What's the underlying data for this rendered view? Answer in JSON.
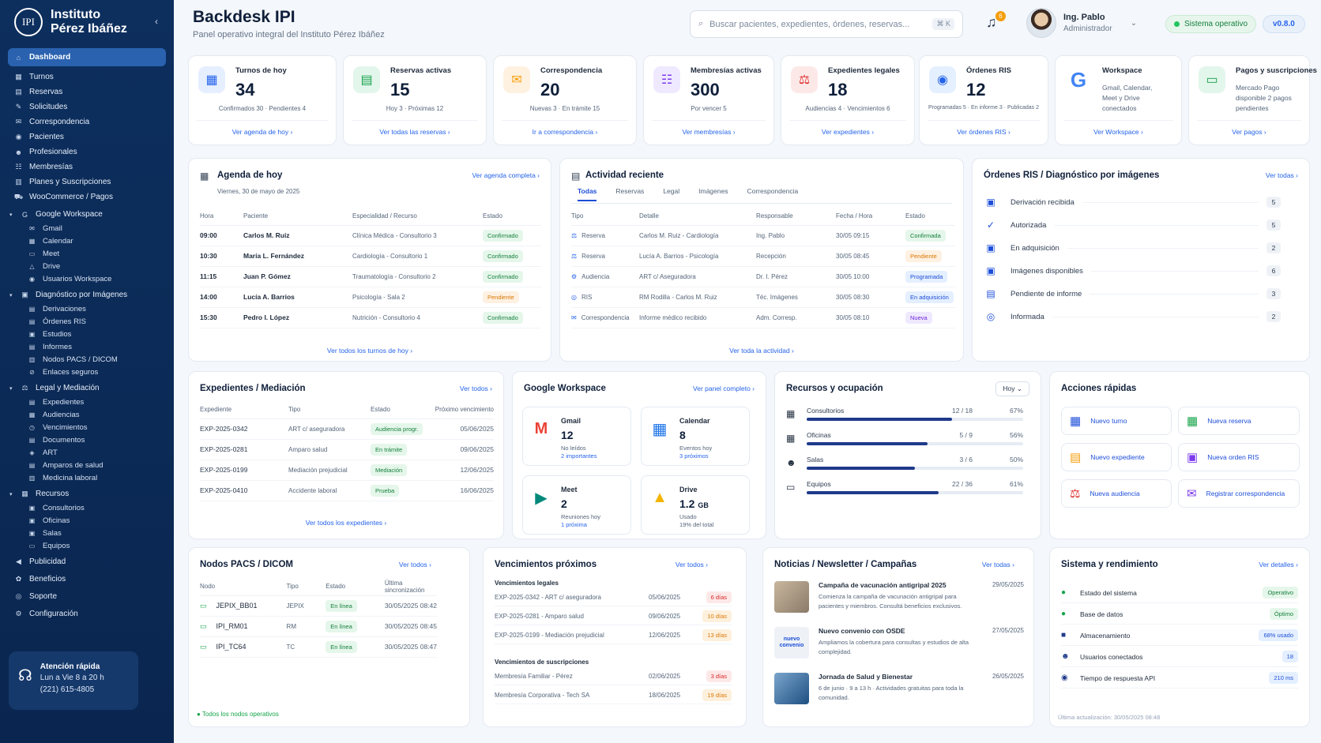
{
  "sidebar": {
    "logo": "IPI",
    "brand_line1": "Instituto",
    "brand_line2": "Pérez Ibáñez",
    "collapse": "‹",
    "items": [
      {
        "label": "Dashboard",
        "icon": "home-icon"
      },
      {
        "label": "Turnos",
        "icon": "calendar-icon"
      },
      {
        "label": "Reservas",
        "icon": "clipboard-icon"
      },
      {
        "label": "Solicitudes",
        "icon": "edit-icon"
      },
      {
        "label": "Correspondencia",
        "icon": "mail-icon"
      },
      {
        "label": "Pacientes",
        "icon": "users-icon"
      },
      {
        "label": "Profesionales",
        "icon": "user-doctor-icon"
      },
      {
        "label": "Membresías",
        "icon": "group-icon"
      },
      {
        "label": "Planes y Suscripciones",
        "icon": "layers-icon"
      },
      {
        "label": "WooCommerce / Pagos",
        "icon": "cart-icon"
      }
    ],
    "google_group": "Google Workspace",
    "google_items": [
      "Gmail",
      "Calendar",
      "Meet",
      "Drive",
      "Usuarios Workspace"
    ],
    "diag_group": "Diagnóstico por Imágenes",
    "diag_items": [
      "Derivaciones",
      "Órdenes RIS",
      "Estudios",
      "Informes",
      "Nodos PACS / DICOM",
      "Enlaces seguros"
    ],
    "legal_group": "Legal y Mediación",
    "legal_items": [
      "Expedientes",
      "Audiencias",
      "Vencimientos",
      "Documentos",
      "ART",
      "Amparos de salud",
      "Medicina laboral"
    ],
    "rec_group": "Recursos",
    "rec_items": [
      "Consultorios",
      "Oficinas",
      "Salas",
      "Equipos"
    ],
    "bottom_items": [
      "Publicidad",
      "Beneficios",
      "Soporte",
      "Configuración"
    ],
    "help_title": "Atención rápida",
    "help_hours": "Lun a Vie 8 a 20 h",
    "help_phone": "(221) 615-4805"
  },
  "header": {
    "title": "Backdesk IPI",
    "subtitle": "Panel operativo integral del Instituto Pérez Ibáñez",
    "search_placeholder": "Buscar pacientes, expedientes, órdenes, reservas...",
    "search_kbd": "⌘ K",
    "notif_count": "6",
    "user_name": "Ing. Pablo",
    "user_role": "Administrador",
    "status": "Sistema operativo",
    "version": "v0.8.0"
  },
  "stats": [
    {
      "label": "Turnos de hoy",
      "value": "34",
      "sub": "Confirmados 30 · Pendientes 4",
      "link": "Ver agenda de hoy ›"
    },
    {
      "label": "Reservas activas",
      "value": "15",
      "sub": "Hoy 3 · Próximas 12",
      "link": "Ver todas las reservas ›"
    },
    {
      "label": "Correspondencia",
      "value": "20",
      "sub": "Nuevas 3 · En trámite 15",
      "link": "Ir a correspondencia ›"
    },
    {
      "label": "Membresías activas",
      "value": "300",
      "sub": "Por vencer 5",
      "link": "Ver membresías ›"
    },
    {
      "label": "Expedientes legales",
      "value": "18",
      "sub": "Audiencias 4 · Vencimientos 6",
      "link": "Ver expedientes ›"
    },
    {
      "label": "Órdenes RIS",
      "value": "12",
      "sub": "Programadas 5 · En informe 3 · Publicadas 2",
      "link": "Ver órdenes RIS ›"
    },
    {
      "label": "Workspace",
      "desc": "Gmail, Calendar, Meet y Drive conectados",
      "link": "Ver Workspace ›"
    },
    {
      "label": "Pagos y suscripciones",
      "desc": "Mercado Pago disponible 2 pagos pendientes",
      "link": "Ver pagos ›"
    }
  ],
  "agenda": {
    "title": "Agenda de hoy",
    "date": "Viernes, 30 de mayo de 2025",
    "link": "Ver agenda completa ›",
    "headers": [
      "Hora",
      "Paciente",
      "Especialidad / Recurso",
      "Estado"
    ],
    "rows": [
      {
        "hora": "09:00",
        "paciente": "Carlos M. Ruiz",
        "esp": "Clínica Médica - Consultorio 3",
        "estado": "Confirmado"
      },
      {
        "hora": "10:30",
        "paciente": "María L. Fernández",
        "esp": "Cardiología - Consultorio 1",
        "estado": "Confirmado"
      },
      {
        "hora": "11:15",
        "paciente": "Juan P. Gómez",
        "esp": "Traumatología - Consultorio 2",
        "estado": "Confirmado"
      },
      {
        "hora": "14:00",
        "paciente": "Lucía A. Barrios",
        "esp": "Psicología - Sala 2",
        "estado": "Pendiente"
      },
      {
        "hora": "15:30",
        "paciente": "Pedro I. López",
        "esp": "Nutrición - Consultorio 4",
        "estado": "Confirmado"
      }
    ],
    "footer": "Ver todos los turnos de hoy ›"
  },
  "actividad": {
    "title": "Actividad reciente",
    "tabs": [
      "Todas",
      "Reservas",
      "Legal",
      "Imágenes",
      "Correspondencia"
    ],
    "headers": [
      "Tipo",
      "Detalle",
      "Responsable",
      "Fecha / Hora",
      "Estado"
    ],
    "rows": [
      {
        "tipo": "Reserva",
        "detalle": "Carlos M. Ruiz - Cardiología",
        "resp": "Ing. Pablo",
        "fecha": "30/05 09:15",
        "estado": "Confirmada"
      },
      {
        "tipo": "Reserva",
        "detalle": "Lucía A. Barrios - Psicología",
        "resp": "Recepción",
        "fecha": "30/05 08:45",
        "estado": "Pendiente"
      },
      {
        "tipo": "Audiencia",
        "detalle": "ART c/ Aseguradora",
        "resp": "Dr. I. Pérez",
        "fecha": "30/05 10:00",
        "estado": "Programada"
      },
      {
        "tipo": "RIS",
        "detalle": "RM Rodilla - Carlos M. Ruiz",
        "resp": "Téc. Imágenes",
        "fecha": "30/05 08:30",
        "estado": "En adquisición"
      },
      {
        "tipo": "Correspondencia",
        "detalle": "Informe médico recibido",
        "resp": "Adm. Corresp.",
        "fecha": "30/05 08:10",
        "estado": "Nueva"
      }
    ],
    "footer": "Ver toda la actividad ›"
  },
  "ris": {
    "title": "Órdenes RIS / Diagnóstico por imágenes",
    "link": "Ver todas ›",
    "rows": [
      {
        "label": "Derivación recibida",
        "count": "5"
      },
      {
        "label": "Autorizada",
        "count": "5"
      },
      {
        "label": "En adquisición",
        "count": "2"
      },
      {
        "label": "Imágenes disponibles",
        "count": "6"
      },
      {
        "label": "Pendiente de informe",
        "count": "3"
      },
      {
        "label": "Informada",
        "count": "2"
      }
    ]
  },
  "expedientes": {
    "title": "Expedientes / Mediación",
    "link": "Ver todos ›",
    "headers": [
      "Expediente",
      "Tipo",
      "Estado",
      "Próximo vencimiento"
    ],
    "rows": [
      {
        "exp": "EXP-2025-0342",
        "tipo": "ART c/ aseguradora",
        "estado": "Audiencia progr.",
        "venc": "05/06/2025"
      },
      {
        "exp": "EXP-2025-0281",
        "tipo": "Amparo salud",
        "estado": "En trámite",
        "venc": "09/06/2025"
      },
      {
        "exp": "EXP-2025-0199",
        "tipo": "Mediación prejudicial",
        "estado": "Mediación",
        "venc": "12/06/2025"
      },
      {
        "exp": "EXP-2025-0410",
        "tipo": "Accidente laboral",
        "estado": "Prueba",
        "venc": "16/06/2025"
      }
    ],
    "footer": "Ver todos los expedientes ›"
  },
  "workspace": {
    "title": "Google Workspace",
    "link": "Ver panel completo ›",
    "tiles": [
      {
        "name": "Gmail",
        "value": "12",
        "sub": "No leídos",
        "sub2": "2 importantes"
      },
      {
        "name": "Calendar",
        "value": "8",
        "sub": "Eventos hoy",
        "sub2": "3 próximos"
      },
      {
        "name": "Meet",
        "value": "2",
        "sub": "Reuniones hoy",
        "sub2": "1 próxima"
      },
      {
        "name": "Drive",
        "value": "1.2",
        "unit": "GB",
        "sub": "Usado",
        "sub2": "19% del total"
      }
    ]
  },
  "recursos": {
    "title": "Recursos y ocupación",
    "filter": "Hoy",
    "rows": [
      {
        "name": "Consultorios",
        "frac": "12 / 18",
        "pct": "67%",
        "fill": 0.67
      },
      {
        "name": "Oficinas",
        "frac": "5 / 9",
        "pct": "56%",
        "fill": 0.56
      },
      {
        "name": "Salas",
        "frac": "3 / 6",
        "pct": "50%",
        "fill": 0.5
      },
      {
        "name": "Equipos",
        "frac": "22 / 36",
        "pct": "61%",
        "fill": 0.61
      }
    ]
  },
  "acciones": {
    "title": "Acciones rápidas",
    "items": [
      "Nuevo turno",
      "Nueva reserva",
      "Nuevo expediente",
      "Nueva orden RIS",
      "Nueva audiencia",
      "Registrar correspondencia"
    ]
  },
  "pacs": {
    "title": "Nodos PACS / DICOM",
    "link": "Ver todos ›",
    "headers": [
      "Nodo",
      "Tipo",
      "Estado",
      "Última sincronización"
    ],
    "rows": [
      {
        "nodo": "JEPIX_BB01",
        "tipo": "JEPIX",
        "estado": "En línea",
        "sync": "30/05/2025 08:42"
      },
      {
        "nodo": "IPI_RM01",
        "tipo": "RM",
        "estado": "En línea",
        "sync": "30/05/2025 08:45"
      },
      {
        "nodo": "IPI_TC64",
        "tipo": "TC",
        "estado": "En línea",
        "sync": "30/05/2025 08:47"
      }
    ],
    "footer": "Todos los nodos operativos"
  },
  "vencimientos": {
    "title": "Vencimientos próximos",
    "link": "Ver todos ›",
    "legales_title": "Vencimientos legales",
    "legales": [
      {
        "d": "EXP-2025-0342 - ART c/ aseguradora",
        "f": "05/06/2025",
        "p": "6 días"
      },
      {
        "d": "EXP-2025-0281 - Amparo salud",
        "f": "09/06/2025",
        "p": "10 días"
      },
      {
        "d": "EXP-2025-0199 - Mediación prejudicial",
        "f": "12/06/2025",
        "p": "13 días"
      }
    ],
    "subs_title": "Vencimientos de suscripciones",
    "subs": [
      {
        "d": "Membresía Familiar - Pérez",
        "f": "02/06/2025",
        "p": "3 días"
      },
      {
        "d": "Membresía Corporativa - Tech SA",
        "f": "18/06/2025",
        "p": "19 días"
      }
    ]
  },
  "noticias": {
    "title": "Noticias / Newsletter / Campañas",
    "link": "Ver todas ›",
    "items": [
      {
        "t": "Campaña de vacunación antigripal 2025",
        "d": "Comienza la campaña de vacunación antigripal para pacientes y miembros. Consultá beneficios exclusivos.",
        "date": "29/05/2025"
      },
      {
        "t": "Nuevo convenio con OSDE",
        "d": "Ampliamos la cobertura para consultas y estudios de alta complejidad.",
        "date": "27/05/2025",
        "img_text": "nuevo convenio"
      },
      {
        "t": "Jornada de Salud y Bienestar",
        "d": "6 de junio · 9 a 13 h · Actividades gratuitas para toda la comunidad.",
        "date": "26/05/2025"
      }
    ]
  },
  "sistema": {
    "title": "Sistema y rendimiento",
    "link": "Ver detalles ›",
    "rows": [
      {
        "k": "Estado del sistema",
        "v": "Operativo"
      },
      {
        "k": "Base de datos",
        "v": "Óptimo"
      },
      {
        "k": "Almacenamiento",
        "v": "68% usado"
      },
      {
        "k": "Usuarios conectados",
        "v": "18"
      },
      {
        "k": "Tiempo de respuesta API",
        "v": "210 ms"
      }
    ],
    "updated": "Última actualización: 30/05/2025 08:48"
  }
}
